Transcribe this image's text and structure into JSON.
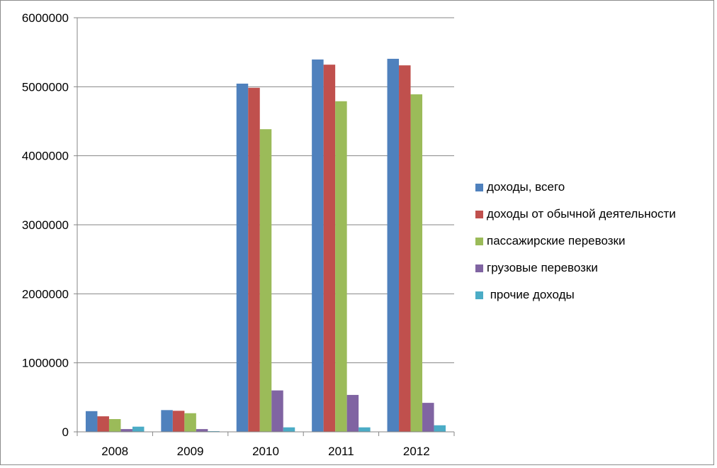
{
  "chart_data": {
    "type": "bar",
    "categories": [
      "2008",
      "2009",
      "2010",
      "2011",
      "2012"
    ],
    "series": [
      {
        "name": "доходы, всего",
        "color": "#4f81bd",
        "values": [
          300000,
          315000,
          5045000,
          5395000,
          5405000
        ]
      },
      {
        "name": "доходы от обычной деятельности",
        "color": "#c0504d",
        "values": [
          225000,
          305000,
          4985000,
          5320000,
          5310000
        ]
      },
      {
        "name": "пассажирские перевозки",
        "color": "#9bbb59",
        "values": [
          185000,
          270000,
          4385000,
          4790000,
          4890000
        ]
      },
      {
        "name": "грузовые перевозки",
        "color": "#8064a2",
        "values": [
          40000,
          40000,
          600000,
          535000,
          420000
        ]
      },
      {
        "name": " прочие доходы",
        "color": "#4bacc6",
        "values": [
          75000,
          10000,
          65000,
          65000,
          95000
        ]
      }
    ],
    "ylim": [
      0,
      6000000
    ],
    "yticks": [
      "0",
      "1000000",
      "2000000",
      "3000000",
      "4000000",
      "5000000",
      "6000000"
    ],
    "grid": true,
    "legend_position": "right"
  }
}
